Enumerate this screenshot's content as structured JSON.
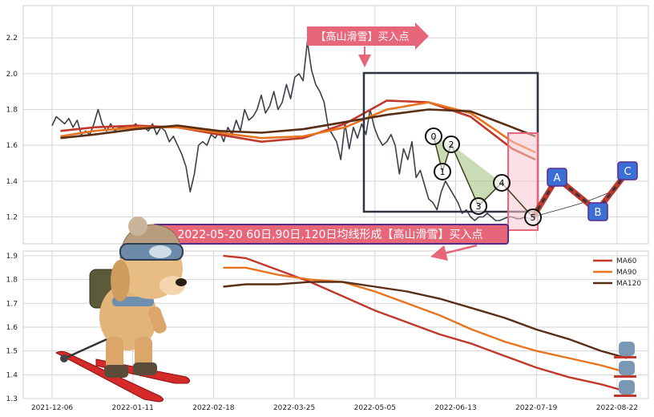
{
  "chart_data": [
    {
      "type": "line",
      "panel": "price",
      "ylim": [
        1.05,
        2.38
      ],
      "yticks": [
        "1.2",
        "1.4",
        "1.6",
        "1.8",
        "2.0",
        "2.2"
      ],
      "ytick_values": [
        1.2,
        1.4,
        1.6,
        1.8,
        2.0,
        2.2
      ],
      "grid": true,
      "series": [
        {
          "key": "close",
          "color": "#3a3f4a",
          "x": [
            0,
            2,
            4,
            6,
            8,
            10,
            12,
            14,
            16,
            18,
            20,
            22,
            24,
            26,
            28,
            30,
            32,
            34,
            36,
            38,
            40,
            42,
            44,
            46,
            48,
            50,
            52,
            54,
            56,
            58,
            60,
            62,
            64,
            66,
            68,
            70,
            72,
            74,
            76,
            78,
            80,
            82,
            84,
            86,
            88,
            90,
            92,
            94,
            96,
            98,
            100,
            102,
            104,
            106,
            108,
            110,
            112,
            114,
            116,
            118,
            120,
            122,
            124,
            126,
            128,
            130,
            132,
            134,
            136,
            138,
            140,
            142,
            144,
            146,
            148,
            150,
            152,
            154,
            156,
            158,
            160,
            162,
            164,
            166,
            168,
            170,
            172,
            174,
            176,
            178,
            180,
            182,
            184,
            186,
            188,
            190,
            192,
            194,
            196,
            198,
            200,
            202,
            204,
            206,
            208,
            210,
            212,
            214,
            216,
            218,
            220,
            222,
            224,
            226,
            228,
            230,
            231
          ],
          "values": [
            1.71,
            1.76,
            1.74,
            1.72,
            1.75,
            1.7,
            1.74,
            1.66,
            1.68,
            1.66,
            1.72,
            1.8,
            1.72,
            1.68,
            1.72,
            1.68,
            1.7,
            1.7,
            1.71,
            1.7,
            1.72,
            1.69,
            1.7,
            1.68,
            1.72,
            1.66,
            1.7,
            1.68,
            1.62,
            1.65,
            1.6,
            1.55,
            1.48,
            1.34,
            1.44,
            1.6,
            1.62,
            1.6,
            1.66,
            1.64,
            1.68,
            1.62,
            1.7,
            1.66,
            1.74,
            1.68,
            1.8,
            1.74,
            1.76,
            1.8,
            1.88,
            1.78,
            1.82,
            1.9,
            1.8,
            1.84,
            1.94,
            1.86,
            1.98,
            2.0,
            1.96,
            2.18,
            2.02,
            1.94,
            1.9,
            1.84,
            1.7,
            1.66,
            1.62,
            1.52,
            1.72,
            1.58,
            1.7,
            1.64,
            1.72,
            1.66,
            1.8,
            1.7,
            1.64,
            1.6,
            1.62,
            1.66,
            1.6,
            1.44,
            1.58,
            1.52,
            1.62,
            1.42,
            1.46,
            1.38,
            1.3,
            1.28,
            1.24,
            1.34,
            1.4,
            1.36,
            1.32,
            1.28,
            1.22,
            1.24,
            1.2,
            1.18,
            1.2,
            1.2,
            1.22,
            1.2,
            1.18,
            1.18,
            1.19,
            1.2,
            1.2,
            1.19,
            1.19,
            1.2,
            1.19,
            1.19,
            1.2
          ]
        },
        {
          "key": "ma60",
          "color": "#c0392b",
          "x": [
            4,
            20,
            40,
            60,
            80,
            100,
            120,
            140,
            160,
            180,
            200,
            220,
            231
          ],
          "values": [
            1.68,
            1.7,
            1.71,
            1.7,
            1.66,
            1.62,
            1.64,
            1.72,
            1.85,
            1.84,
            1.76,
            1.58,
            1.52
          ]
        },
        {
          "key": "ma90",
          "color": "#e8741f",
          "x": [
            4,
            20,
            40,
            60,
            80,
            100,
            120,
            140,
            160,
            180,
            200,
            220,
            231
          ],
          "values": [
            1.65,
            1.68,
            1.7,
            1.7,
            1.67,
            1.64,
            1.65,
            1.7,
            1.8,
            1.84,
            1.78,
            1.62,
            1.56
          ]
        },
        {
          "key": "ma120",
          "color": "#5a2e14",
          "x": [
            4,
            20,
            40,
            60,
            80,
            100,
            120,
            140,
            160,
            180,
            200,
            220,
            231
          ],
          "values": [
            1.64,
            1.66,
            1.69,
            1.71,
            1.68,
            1.67,
            1.69,
            1.73,
            1.77,
            1.8,
            1.79,
            1.7,
            1.65
          ]
        }
      ]
    },
    {
      "type": "line",
      "panel": "ma",
      "ylim": [
        1.3,
        1.92
      ],
      "yticks": [
        "1.3",
        "1.4",
        "1.5",
        "1.6",
        "1.7",
        "1.8",
        "1.9"
      ],
      "ytick_values": [
        1.3,
        1.4,
        1.5,
        1.6,
        1.7,
        1.8,
        1.9
      ],
      "xticks": [
        "2021-12-06",
        "2022-01-11",
        "2022-02-18",
        "2022-03-25",
        "2022-05-05",
        "2022-06-13",
        "2022-07-19",
        "2022-08-22"
      ],
      "xtick_values": [
        0,
        25,
        50,
        75,
        100,
        125,
        150,
        175
      ],
      "grid": true,
      "legend": [
        "MA60",
        "MA90",
        "MA120"
      ],
      "legend_position": "top-right",
      "series": [
        {
          "name": "MA60",
          "color": "#c0392b",
          "x": [
            53,
            60,
            70,
            80,
            90,
            100,
            110,
            120,
            130,
            140,
            150,
            160,
            170,
            178
          ],
          "values": [
            1.9,
            1.89,
            1.84,
            1.79,
            1.73,
            1.67,
            1.62,
            1.57,
            1.53,
            1.48,
            1.43,
            1.39,
            1.36,
            1.33
          ]
        },
        {
          "name": "MA90",
          "color": "#e8741f",
          "x": [
            53,
            60,
            70,
            80,
            90,
            100,
            110,
            120,
            130,
            140,
            150,
            160,
            170,
            178
          ],
          "values": [
            1.85,
            1.85,
            1.82,
            1.8,
            1.79,
            1.75,
            1.7,
            1.65,
            1.59,
            1.54,
            1.5,
            1.47,
            1.44,
            1.41
          ]
        },
        {
          "name": "MA120",
          "color": "#5a2e14",
          "x": [
            53,
            60,
            70,
            80,
            90,
            100,
            110,
            120,
            130,
            140,
            150,
            160,
            170,
            178
          ],
          "values": [
            1.77,
            1.78,
            1.78,
            1.79,
            1.79,
            1.77,
            1.75,
            1.72,
            1.68,
            1.64,
            1.59,
            1.55,
            1.5,
            1.47
          ]
        }
      ]
    }
  ],
  "annotations": {
    "top_label": "【高山滑雪】买入点",
    "bottom_label": "2022-05-20 60日,90日,120日均线形成【高山滑雪】买入点",
    "wave_points": [
      "0",
      "1",
      "2",
      "3",
      "4",
      "5"
    ],
    "projection_points": [
      "A",
      "B",
      "C"
    ]
  },
  "colors": {
    "label_bg": "#e8667a",
    "label_border": "#5a2a8a",
    "box": "#3a3f4a",
    "pink_zone": "#f7c9d0",
    "projection_box": "#3b6fd6",
    "wave_fill": "#9fbf7a"
  }
}
